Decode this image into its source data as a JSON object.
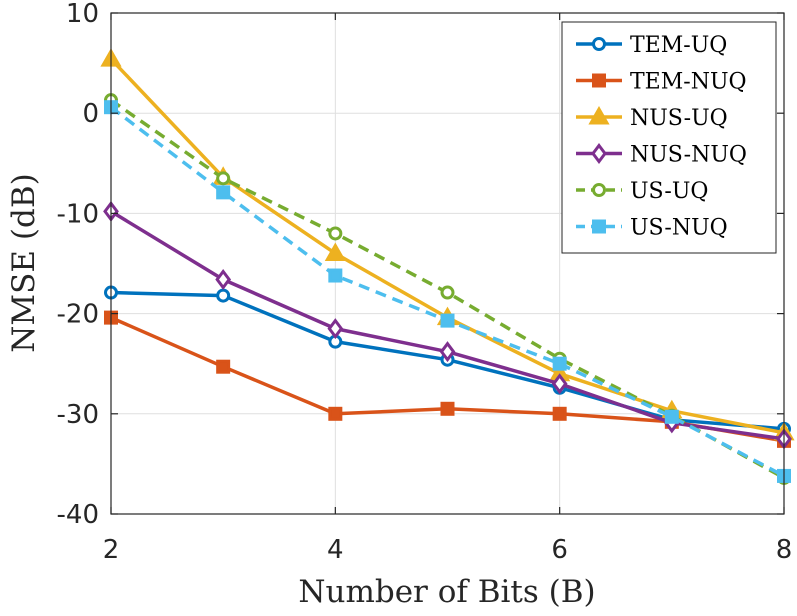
{
  "chart_data": {
    "type": "line",
    "xlabel": "Number of Bits (B)",
    "ylabel": "NMSE (dB)",
    "xlim": [
      2,
      8
    ],
    "ylim": [
      -40,
      10
    ],
    "x": [
      2,
      3,
      4,
      5,
      6,
      7,
      8
    ],
    "xticks": [
      "2",
      "4",
      "6",
      "8"
    ],
    "yticks": [
      "10",
      "0",
      "-10",
      "-20",
      "-30",
      "-40"
    ],
    "grid": true,
    "legend_position": "top-right",
    "series": [
      {
        "name": "TEM-UQ",
        "color": "#0072BD",
        "dash": "solid",
        "marker": "circle",
        "values": [
          -17.9,
          -18.2,
          -22.8,
          -24.6,
          -27.4,
          -30.6,
          -31.5
        ]
      },
      {
        "name": "TEM-NUQ",
        "color": "#D95319",
        "dash": "solid",
        "marker": "square",
        "values": [
          -20.4,
          -25.3,
          -30.0,
          -29.5,
          -30.0,
          -30.8,
          -32.7
        ]
      },
      {
        "name": "NUS-UQ",
        "color": "#EDB120",
        "dash": "solid",
        "marker": "triangle",
        "values": [
          5.4,
          -6.4,
          -14.0,
          -20.4,
          -26.0,
          -29.7,
          -31.9
        ]
      },
      {
        "name": "NUS-NUQ",
        "color": "#7E2F8E",
        "dash": "solid",
        "marker": "diamond",
        "values": [
          -9.8,
          -16.6,
          -21.5,
          -23.8,
          -27.0,
          -30.9,
          -32.5
        ]
      },
      {
        "name": "US-UQ",
        "color": "#77AC30",
        "dash": "dashed",
        "marker": "circle",
        "values": [
          1.3,
          -6.5,
          -12.0,
          -17.9,
          -24.5,
          -30.2,
          -36.4
        ]
      },
      {
        "name": "US-NUQ",
        "color": "#4DBEEE",
        "dash": "dashed",
        "marker": "square",
        "values": [
          0.6,
          -7.9,
          -16.2,
          -20.7,
          -25.0,
          -30.3,
          -36.2
        ]
      }
    ]
  }
}
